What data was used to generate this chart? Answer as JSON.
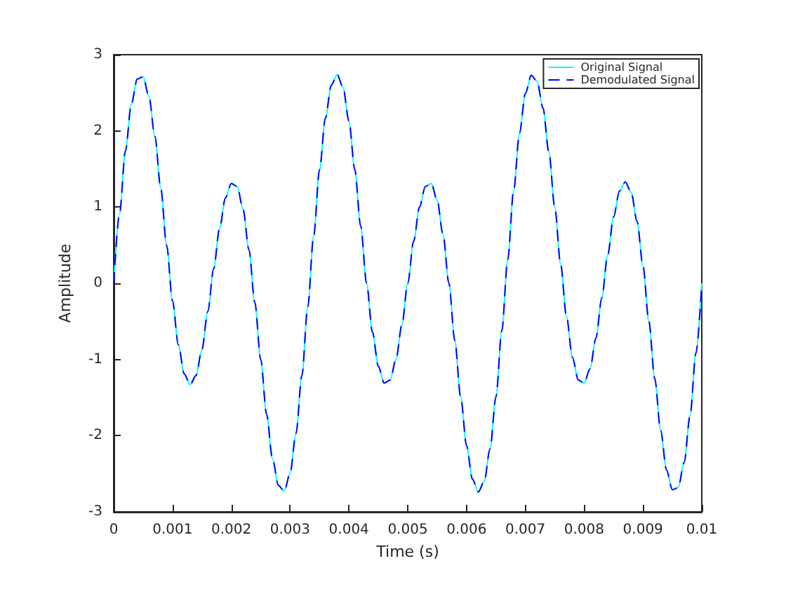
{
  "chart_data": {
    "type": "line",
    "xlabel": "Time (s)",
    "ylabel": "Amplitude",
    "x": [
      0,
      0.0001,
      0.0002,
      0.0003,
      0.0004,
      0.0005,
      0.0006,
      0.0007,
      0.0008,
      0.0009,
      0.001,
      0.0011,
      0.0012,
      0.0013,
      0.0014,
      0.0015,
      0.0016,
      0.0017,
      0.0018,
      0.0019,
      0.002,
      0.0021,
      0.0022,
      0.0023,
      0.0024,
      0.0025,
      0.0026,
      0.0027,
      0.0028,
      0.0029,
      0.003,
      0.0031,
      0.0032,
      0.0033,
      0.0034,
      0.0035,
      0.0036,
      0.0037,
      0.0038,
      0.0039,
      0.004,
      0.0041,
      0.0042,
      0.0043,
      0.0044,
      0.0045,
      0.0046,
      0.0047,
      0.0048,
      0.0049,
      0.005,
      0.0051,
      0.0052,
      0.0053,
      0.0054,
      0.0055,
      0.0056,
      0.0057,
      0.0058,
      0.0059,
      0.006,
      0.0061,
      0.0062,
      0.0063,
      0.0064,
      0.0065,
      0.0066,
      0.0067,
      0.0068,
      0.0069,
      0.007,
      0.0071,
      0.0072,
      0.0073,
      0.0074,
      0.0075,
      0.0076,
      0.0077,
      0.0078,
      0.0079,
      0.008,
      0.0081,
      0.0082,
      0.0083,
      0.0084,
      0.0085,
      0.0086,
      0.0087,
      0.0088,
      0.0089,
      0.009,
      0.0091,
      0.0092,
      0.0093,
      0.0094,
      0.0095,
      0.0096,
      0.0097,
      0.0098,
      0.0099,
      0.01
    ],
    "series": [
      {
        "name": "Original Signal",
        "color": "#00ffff",
        "line_style": "solid",
        "values": [
          0,
          0.92,
          1.74,
          2.35,
          2.68,
          2.71,
          2.45,
          1.93,
          1.25,
          0.5,
          -0.23,
          -0.81,
          -1.19,
          -1.33,
          -1.21,
          -0.87,
          -0.37,
          0.19,
          0.72,
          1.12,
          1.31,
          1.27,
          0.97,
          0.44,
          -0.25,
          -1,
          -1.72,
          -2.3,
          -2.65,
          -2.73,
          -2.49,
          -1.97,
          -1.21,
          -0.31,
          0.62,
          1.49,
          2.17,
          2.6,
          2.74,
          2.57,
          2.13,
          1.49,
          0.75,
          0,
          -0.64,
          -1.09,
          -1.31,
          -1.27,
          -1,
          -0.55,
          0,
          0.55,
          1,
          1.27,
          1.31,
          1.09,
          0.64,
          0,
          -0.75,
          -1.49,
          -2.13,
          -2.57,
          -2.74,
          -2.6,
          -2.17,
          -1.49,
          -0.62,
          0.31,
          1.21,
          1.97,
          2.49,
          2.73,
          2.65,
          2.3,
          1.72,
          1,
          0.25,
          -0.44,
          -0.97,
          -1.27,
          -1.31,
          -1.12,
          -0.72,
          -0.19,
          0.37,
          0.87,
          1.21,
          1.33,
          1.19,
          0.81,
          0.23,
          -0.5,
          -1.25,
          -1.93,
          -2.45,
          -2.71,
          -2.68,
          -2.35,
          -1.74,
          -0.92,
          0
        ]
      },
      {
        "name": "Demodulated Signal",
        "color": "#0000ff",
        "line_style": "dashed",
        "values": [
          0,
          0.92,
          1.74,
          2.35,
          2.68,
          2.71,
          2.45,
          1.93,
          1.25,
          0.5,
          -0.23,
          -0.81,
          -1.19,
          -1.33,
          -1.21,
          -0.87,
          -0.37,
          0.19,
          0.72,
          1.12,
          1.31,
          1.27,
          0.97,
          0.44,
          -0.25,
          -1,
          -1.72,
          -2.3,
          -2.65,
          -2.73,
          -2.49,
          -1.97,
          -1.21,
          -0.31,
          0.62,
          1.49,
          2.17,
          2.6,
          2.74,
          2.57,
          2.13,
          1.49,
          0.75,
          0,
          -0.64,
          -1.09,
          -1.31,
          -1.27,
          -1,
          -0.55,
          0,
          0.55,
          1,
          1.27,
          1.31,
          1.09,
          0.64,
          0,
          -0.75,
          -1.49,
          -2.13,
          -2.57,
          -2.74,
          -2.6,
          -2.17,
          -1.49,
          -0.62,
          0.31,
          1.21,
          1.97,
          2.49,
          2.73,
          2.65,
          2.3,
          1.72,
          1,
          0.25,
          -0.44,
          -0.97,
          -1.27,
          -1.31,
          -1.12,
          -0.72,
          -0.19,
          0.37,
          0.87,
          1.21,
          1.33,
          1.19,
          0.81,
          0.23,
          -0.5,
          -1.25,
          -1.93,
          -2.45,
          -2.71,
          -2.68,
          -2.35,
          -1.74,
          -0.92,
          0
        ]
      }
    ],
    "xlim": [
      0,
      0.01
    ],
    "xticks": [
      0,
      0.001,
      0.002,
      0.003,
      0.004,
      0.005,
      0.006,
      0.007,
      0.008,
      0.009,
      0.01
    ],
    "ylim": [
      -3,
      3
    ],
    "yticks": [
      -3,
      -2,
      -1,
      0,
      1,
      2,
      3
    ],
    "grid": false,
    "legend": "top right",
    "marker": "none"
  }
}
